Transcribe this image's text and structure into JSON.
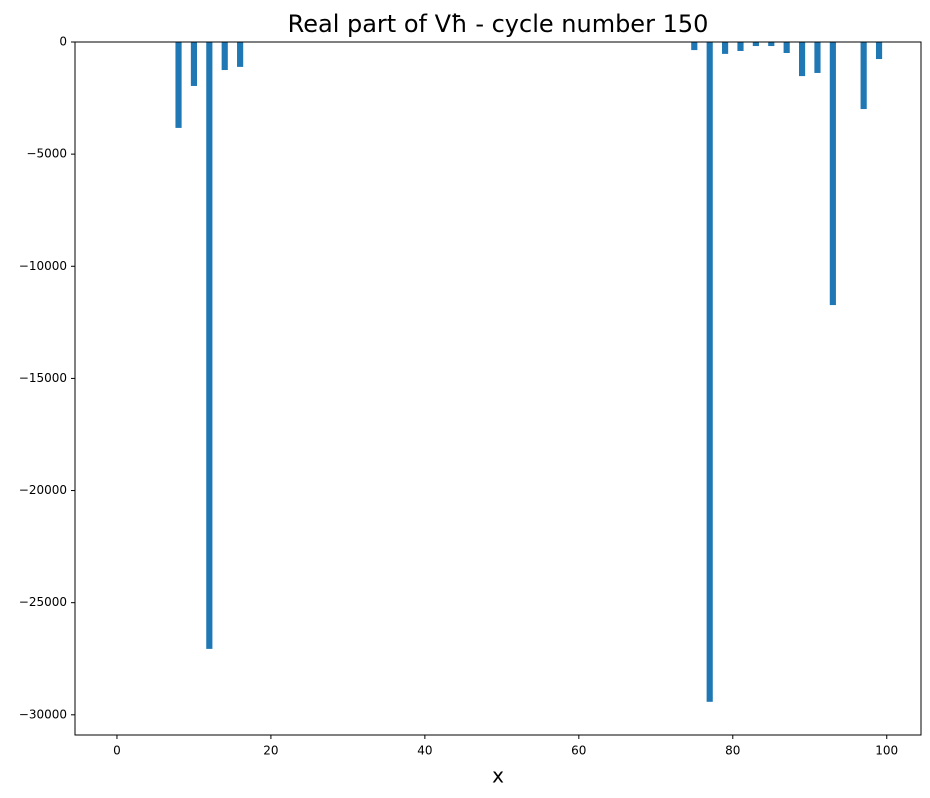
{
  "chart_data": {
    "type": "bar",
    "title": "Real part of Vħ - cycle number 150",
    "x_label": "x",
    "x": [
      8,
      10,
      12,
      14,
      16,
      75,
      77,
      79,
      81,
      83,
      85,
      87,
      89,
      91,
      93,
      97,
      99
    ],
    "values": [
      -3830,
      -1960,
      -27060,
      -1250,
      -1110,
      -360,
      -29420,
      -530,
      -400,
      -180,
      -180,
      -490,
      -1520,
      -1380,
      -11730,
      -2990,
      -760
    ],
    "color": "#1f77b4",
    "xlim": [
      -5.45,
      104.45
    ],
    "xticks": [
      0,
      20,
      40,
      60,
      80,
      100
    ],
    "ylim": [
      -30900,
      0
    ],
    "yticks": [
      {
        "value": -30000,
        "label": "−30000"
      },
      {
        "value": -25000,
        "label": "−25000"
      },
      {
        "value": -20000,
        "label": "−20000"
      },
      {
        "value": -15000,
        "label": "−15000"
      },
      {
        "value": -10000,
        "label": "−10000"
      },
      {
        "value": -5000,
        "label": "−5000"
      },
      0
    ]
  }
}
